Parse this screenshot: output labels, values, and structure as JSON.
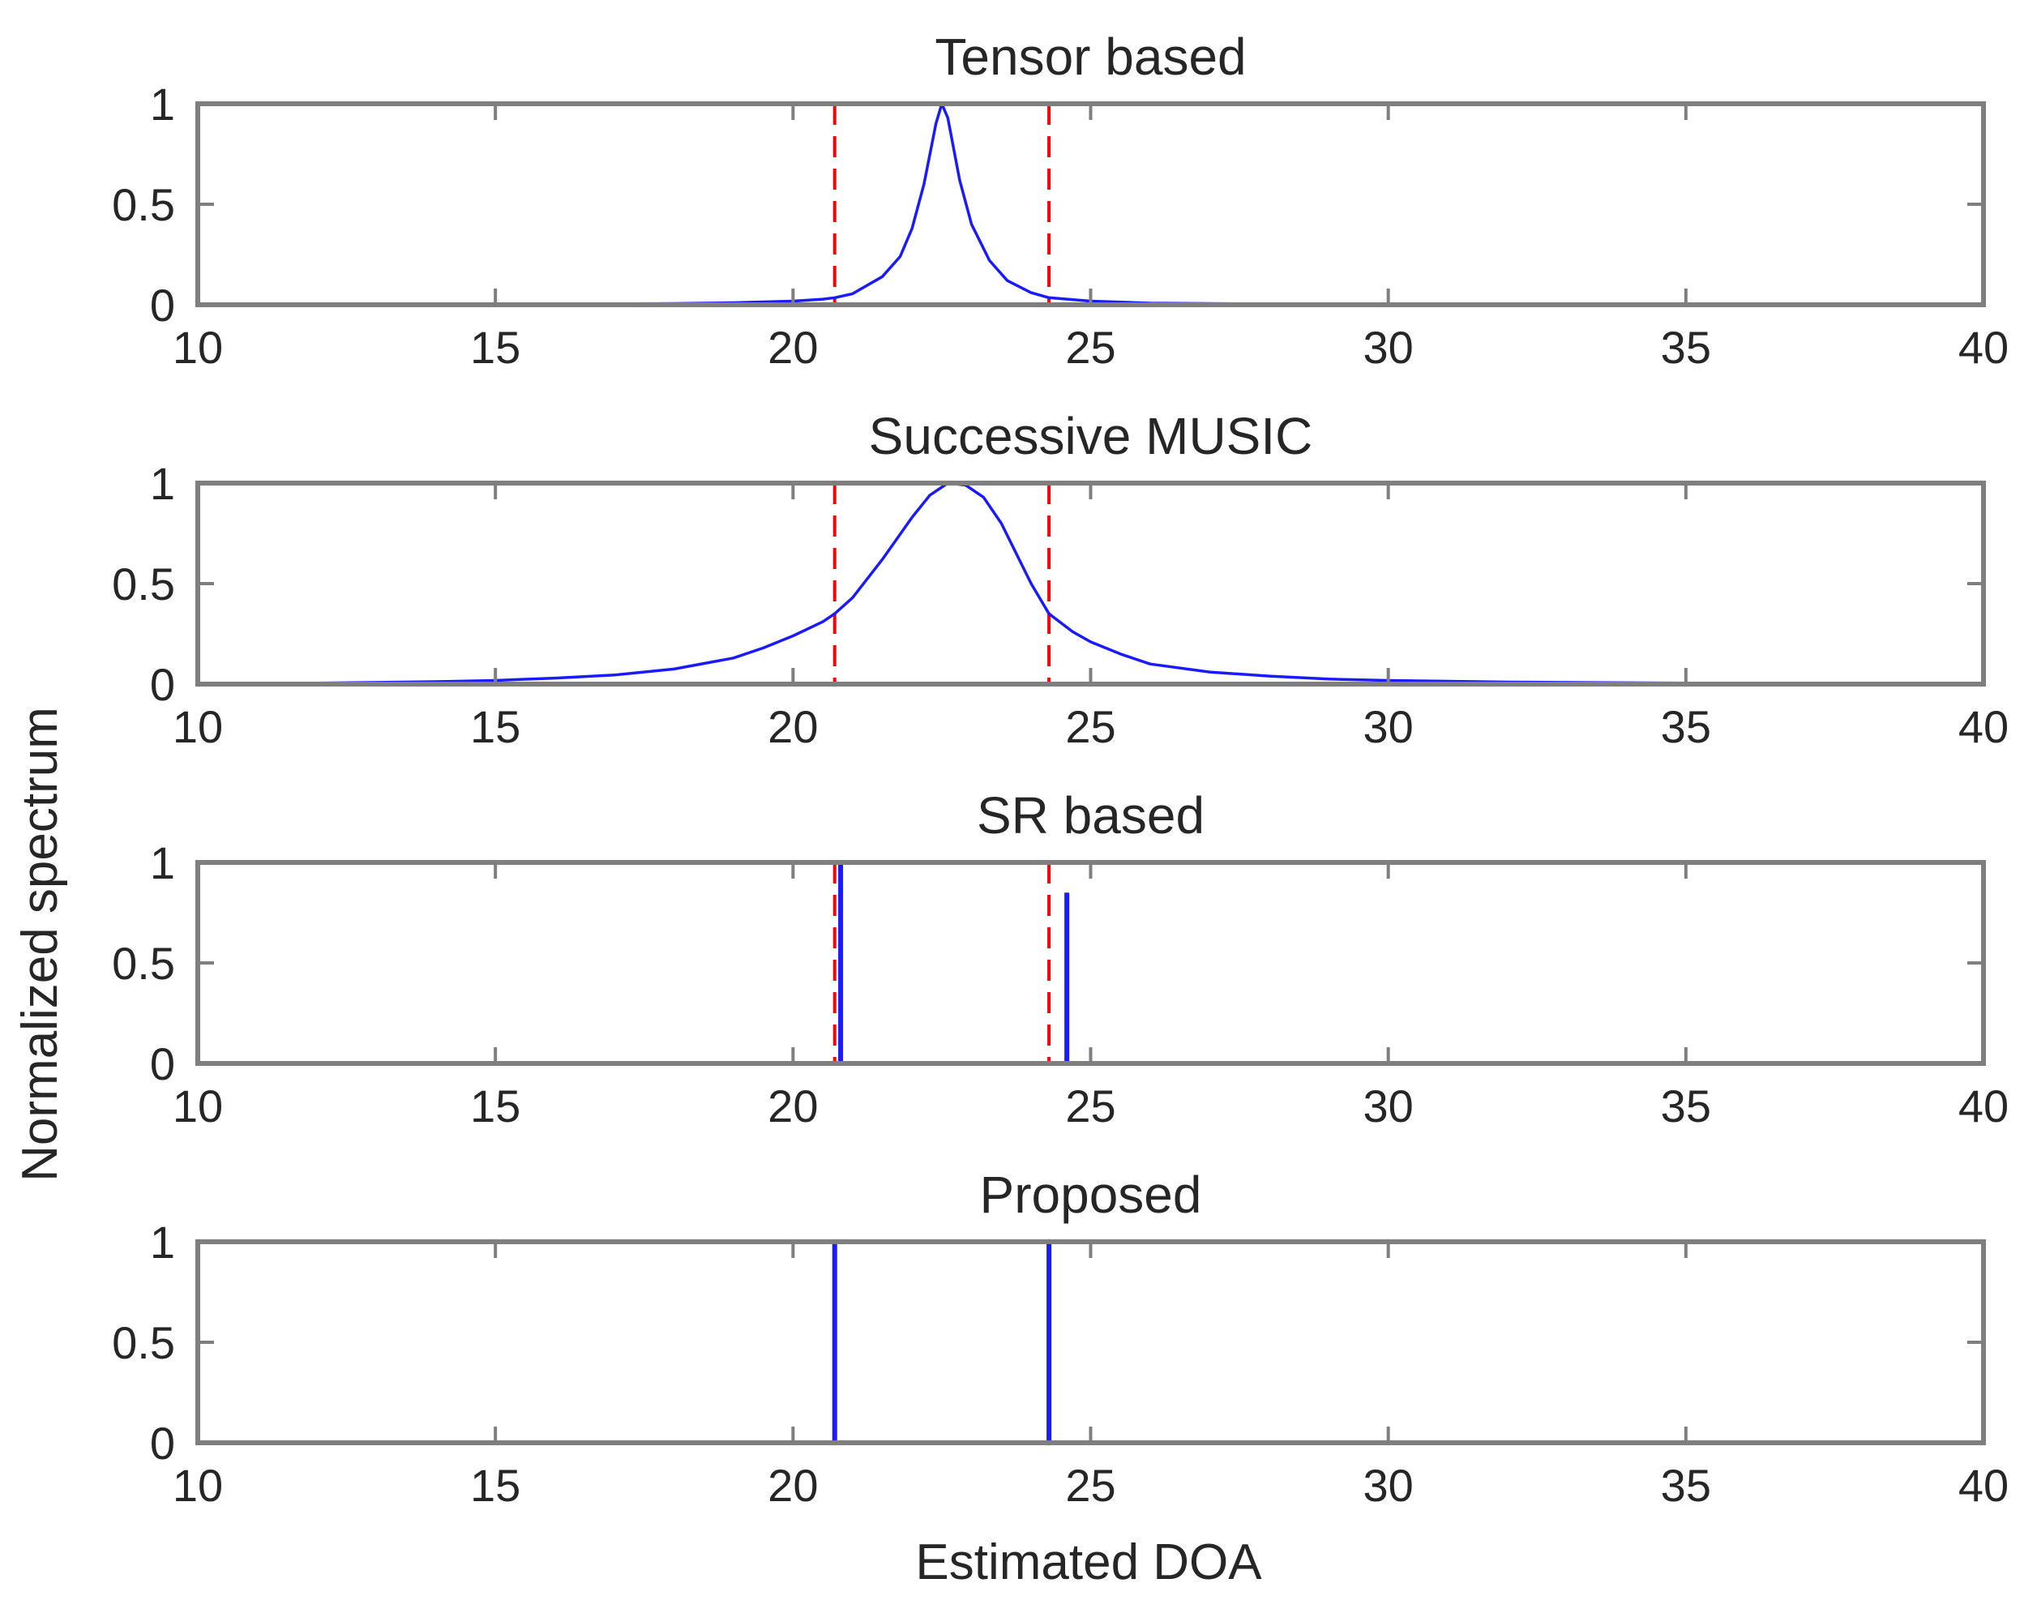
{
  "figure": {
    "ylabel": "Normalized spectrum",
    "xlabel": "Estimated DOA"
  },
  "colors": {
    "spectrum": "#1a1aff",
    "true_doa": "#ff0000",
    "axes": "#7f7f7f"
  },
  "chart_data": [
    {
      "type": "line",
      "title": "Tensor based",
      "xlim": [
        10,
        40
      ],
      "ylim": [
        0,
        1
      ],
      "xticks": [
        10,
        15,
        20,
        25,
        30,
        35,
        40
      ],
      "yticks": [
        0,
        0.5,
        1
      ],
      "true_doa": [
        20.7,
        24.3
      ],
      "series": [
        {
          "kind": "curve",
          "x": [
            10,
            15,
            18,
            19,
            20,
            20.5,
            20.7,
            21,
            21.5,
            21.8,
            22,
            22.2,
            22.4,
            22.5,
            22.6,
            22.8,
            23,
            23.3,
            23.6,
            24,
            24.3,
            25,
            26,
            28,
            30,
            35,
            40
          ],
          "y": [
            0.0,
            0.002,
            0.006,
            0.01,
            0.018,
            0.028,
            0.035,
            0.055,
            0.14,
            0.24,
            0.38,
            0.6,
            0.9,
            1.0,
            0.93,
            0.62,
            0.4,
            0.22,
            0.12,
            0.06,
            0.035,
            0.018,
            0.008,
            0.004,
            0.002,
            0.001,
            0.0
          ]
        }
      ]
    },
    {
      "type": "line",
      "title": "Successive MUSIC",
      "xlim": [
        10,
        40
      ],
      "ylim": [
        0,
        1
      ],
      "xticks": [
        10,
        15,
        20,
        25,
        30,
        35,
        40
      ],
      "yticks": [
        0,
        0.5,
        1
      ],
      "true_doa": [
        20.7,
        24.3
      ],
      "series": [
        {
          "kind": "curve",
          "x": [
            10,
            12,
            14,
            15,
            16,
            17,
            18,
            19,
            19.5,
            20,
            20.5,
            20.7,
            21,
            21.5,
            22,
            22.3,
            22.6,
            22.9,
            23.2,
            23.5,
            24,
            24.3,
            24.7,
            25,
            25.5,
            26,
            27,
            28,
            29,
            30,
            32,
            35,
            40
          ],
          "y": [
            0.0,
            0.005,
            0.012,
            0.018,
            0.03,
            0.045,
            0.075,
            0.13,
            0.18,
            0.24,
            0.31,
            0.35,
            0.43,
            0.62,
            0.83,
            0.94,
            1.0,
            0.99,
            0.93,
            0.8,
            0.5,
            0.35,
            0.26,
            0.21,
            0.15,
            0.1,
            0.06,
            0.04,
            0.025,
            0.018,
            0.01,
            0.005,
            0.0
          ]
        }
      ]
    },
    {
      "type": "stem",
      "title": "SR based",
      "xlim": [
        10,
        40
      ],
      "ylim": [
        0,
        1
      ],
      "xticks": [
        10,
        15,
        20,
        25,
        30,
        35,
        40
      ],
      "yticks": [
        0,
        0.5,
        1
      ],
      "true_doa": [
        20.7,
        24.3
      ],
      "series": [
        {
          "kind": "spikes",
          "x": [
            20.8,
            24.6
          ],
          "y": [
            1.0,
            0.85
          ]
        }
      ]
    },
    {
      "type": "stem",
      "title": "Proposed",
      "xlim": [
        10,
        40
      ],
      "ylim": [
        0,
        1
      ],
      "xticks": [
        10,
        15,
        20,
        25,
        30,
        35,
        40
      ],
      "yticks": [
        0,
        0.5,
        1
      ],
      "true_doa": [
        20.7,
        24.3
      ],
      "series": [
        {
          "kind": "spikes",
          "x": [
            20.7,
            24.3
          ],
          "y": [
            1.0,
            1.0
          ]
        }
      ]
    }
  ]
}
